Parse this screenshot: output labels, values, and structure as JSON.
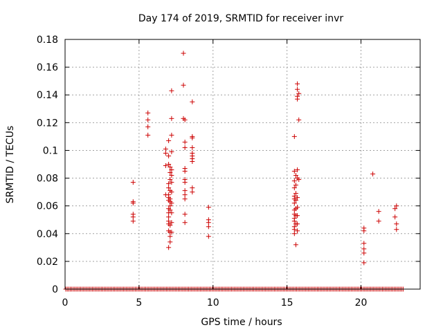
{
  "chart_data": {
    "type": "scatter",
    "title": "Day 174 of 2019, SRMTID for receiver invr",
    "xlabel": "GPS time / hours",
    "ylabel": "SRMTID / TECUs",
    "xlim": [
      0,
      24
    ],
    "ylim": [
      0,
      0.18
    ],
    "xticks": [
      0,
      5,
      10,
      15,
      20
    ],
    "xtick_labels": [
      "0",
      "5",
      "10",
      "15",
      "20"
    ],
    "yticks": [
      0,
      0.02,
      0.04,
      0.06,
      0.08,
      0.1,
      0.12,
      0.14,
      0.16,
      0.18
    ],
    "ytick_labels": [
      "0",
      "0.02",
      "0.04",
      "0.06",
      "0.08",
      "0.1",
      "0.12",
      "0.14",
      "0.16",
      "0.18"
    ],
    "grid": true,
    "marker": "plus",
    "color": "#cc0000",
    "zero_line_x_range": [
      0.05,
      22.9
    ],
    "zero_line_step": 0.1,
    "series": [
      {
        "points": [
          [
            4.6,
            0.077
          ],
          [
            4.6,
            0.063
          ],
          [
            4.6,
            0.062
          ],
          [
            4.6,
            0.054
          ],
          [
            4.6,
            0.052
          ],
          [
            4.6,
            0.049
          ],
          [
            5.6,
            0.127
          ],
          [
            5.6,
            0.122
          ],
          [
            5.6,
            0.117
          ],
          [
            5.6,
            0.111
          ],
          [
            6.8,
            0.101
          ],
          [
            6.8,
            0.098
          ],
          [
            6.8,
            0.089
          ],
          [
            6.8,
            0.068
          ],
          [
            7.0,
            0.107
          ],
          [
            7.0,
            0.096
          ],
          [
            7.0,
            0.09
          ],
          [
            7.0,
            0.076
          ],
          [
            7.0,
            0.073
          ],
          [
            7.0,
            0.068
          ],
          [
            7.0,
            0.066
          ],
          [
            7.0,
            0.064
          ],
          [
            7.0,
            0.058
          ],
          [
            7.0,
            0.055
          ],
          [
            7.0,
            0.052
          ],
          [
            7.0,
            0.049
          ],
          [
            7.0,
            0.047
          ],
          [
            7.0,
            0.042
          ],
          [
            7.0,
            0.03
          ],
          [
            7.1,
            0.088
          ],
          [
            7.1,
            0.084
          ],
          [
            7.1,
            0.079
          ],
          [
            7.1,
            0.071
          ],
          [
            7.1,
            0.065
          ],
          [
            7.1,
            0.063
          ],
          [
            7.1,
            0.06
          ],
          [
            7.1,
            0.057
          ],
          [
            7.1,
            0.046
          ],
          [
            7.1,
            0.041
          ],
          [
            7.1,
            0.038
          ],
          [
            7.1,
            0.034
          ],
          [
            7.2,
            0.143
          ],
          [
            7.2,
            0.123
          ],
          [
            7.2,
            0.111
          ],
          [
            7.2,
            0.099
          ],
          [
            7.2,
            0.086
          ],
          [
            7.2,
            0.082
          ],
          [
            7.2,
            0.077
          ],
          [
            7.2,
            0.07
          ],
          [
            7.2,
            0.062
          ],
          [
            7.2,
            0.055
          ],
          [
            7.2,
            0.048
          ],
          [
            7.2,
            0.041
          ],
          [
            8.0,
            0.17
          ],
          [
            8.0,
            0.147
          ],
          [
            8.0,
            0.123
          ],
          [
            8.1,
            0.122
          ],
          [
            8.1,
            0.106
          ],
          [
            8.1,
            0.102
          ],
          [
            8.1,
            0.087
          ],
          [
            8.1,
            0.085
          ],
          [
            8.1,
            0.079
          ],
          [
            8.1,
            0.077
          ],
          [
            8.1,
            0.071
          ],
          [
            8.1,
            0.068
          ],
          [
            8.1,
            0.065
          ],
          [
            8.1,
            0.054
          ],
          [
            8.1,
            0.048
          ],
          [
            8.6,
            0.135
          ],
          [
            8.6,
            0.11
          ],
          [
            8.6,
            0.109
          ],
          [
            8.6,
            0.102
          ],
          [
            8.6,
            0.098
          ],
          [
            8.6,
            0.096
          ],
          [
            8.6,
            0.094
          ],
          [
            8.6,
            0.092
          ],
          [
            8.6,
            0.073
          ],
          [
            8.6,
            0.07
          ],
          [
            9.7,
            0.059
          ],
          [
            9.7,
            0.05
          ],
          [
            9.7,
            0.048
          ],
          [
            9.7,
            0.045
          ],
          [
            9.7,
            0.038
          ],
          [
            15.5,
            0.11
          ],
          [
            15.5,
            0.085
          ],
          [
            15.5,
            0.078
          ],
          [
            15.5,
            0.073
          ],
          [
            15.5,
            0.067
          ],
          [
            15.5,
            0.065
          ],
          [
            15.5,
            0.062
          ],
          [
            15.5,
            0.057
          ],
          [
            15.5,
            0.054
          ],
          [
            15.5,
            0.051
          ],
          [
            15.5,
            0.049
          ],
          [
            15.5,
            0.045
          ],
          [
            15.5,
            0.043
          ],
          [
            15.5,
            0.04
          ],
          [
            15.6,
            0.082
          ],
          [
            15.6,
            0.075
          ],
          [
            15.6,
            0.069
          ],
          [
            15.6,
            0.064
          ],
          [
            15.6,
            0.058
          ],
          [
            15.6,
            0.053
          ],
          [
            15.6,
            0.047
          ],
          [
            15.6,
            0.032
          ],
          [
            15.7,
            0.148
          ],
          [
            15.7,
            0.144
          ],
          [
            15.7,
            0.139
          ],
          [
            15.7,
            0.137
          ],
          [
            15.7,
            0.086
          ],
          [
            15.7,
            0.08
          ],
          [
            15.7,
            0.066
          ],
          [
            15.7,
            0.059
          ],
          [
            15.7,
            0.053
          ],
          [
            15.7,
            0.047
          ],
          [
            15.7,
            0.042
          ],
          [
            15.8,
            0.141
          ],
          [
            15.8,
            0.122
          ],
          [
            15.8,
            0.079
          ],
          [
            20.2,
            0.044
          ],
          [
            20.2,
            0.042
          ],
          [
            20.2,
            0.033
          ],
          [
            20.2,
            0.029
          ],
          [
            20.2,
            0.026
          ],
          [
            20.2,
            0.019
          ],
          [
            20.8,
            0.083
          ],
          [
            21.2,
            0.056
          ],
          [
            21.2,
            0.049
          ],
          [
            22.3,
            0.058
          ],
          [
            22.3,
            0.052
          ],
          [
            22.4,
            0.06
          ],
          [
            22.4,
            0.047
          ],
          [
            22.4,
            0.043
          ]
        ]
      }
    ]
  }
}
